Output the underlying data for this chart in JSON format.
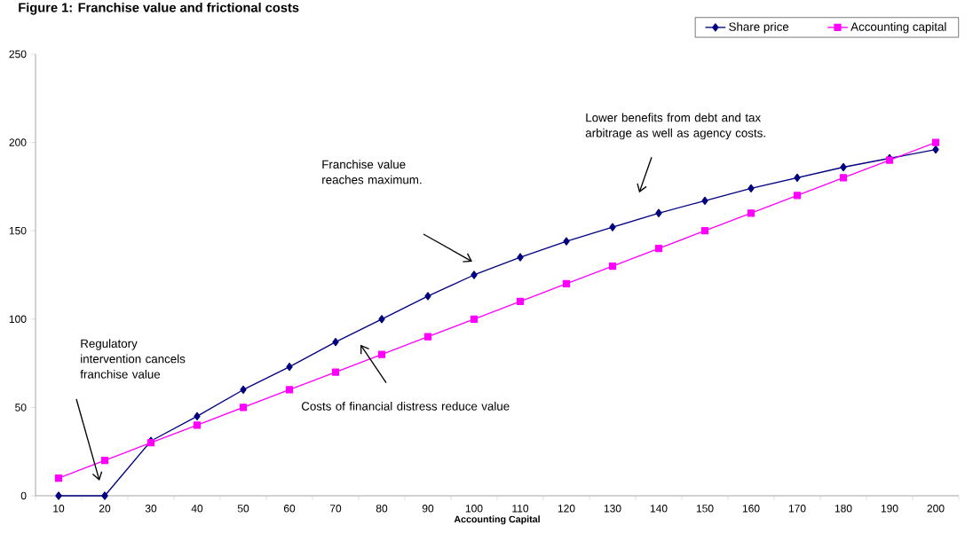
{
  "chart_data": {
    "type": "line",
    "title": "Figure 1: Franchise value and frictional costs",
    "xlabel": "Accounting Capital",
    "categories": [
      "10",
      "20",
      "30",
      "40",
      "50",
      "60",
      "70",
      "80",
      "90",
      "100",
      "110",
      "120",
      "130",
      "140",
      "150",
      "160",
      "170",
      "180",
      "190",
      "200"
    ],
    "series": [
      {
        "name": "Share price",
        "color": "#000080",
        "marker": "diamond",
        "values": [
          0,
          0,
          31,
          45,
          60,
          73,
          87,
          100,
          113,
          125,
          135,
          144,
          152,
          160,
          167,
          174,
          180,
          186,
          191,
          196
        ]
      },
      {
        "name": "Accounting capital",
        "color": "#ff00ff",
        "marker": "square",
        "values": [
          10,
          20,
          30,
          40,
          50,
          60,
          70,
          80,
          90,
          100,
          110,
          120,
          130,
          140,
          150,
          160,
          170,
          180,
          190,
          200
        ]
      }
    ],
    "ylim": [
      0,
      250
    ],
    "yticks": [
      0,
      50,
      100,
      150,
      200,
      250
    ],
    "legend": "top right",
    "annotations": [
      "Regulatory intervention cancels franchise value",
      "Franchise value reaches maximum.",
      "Costs of financial distress reduce value",
      "Lower benefits from debt and tax arbitrage as well as agency costs."
    ]
  }
}
